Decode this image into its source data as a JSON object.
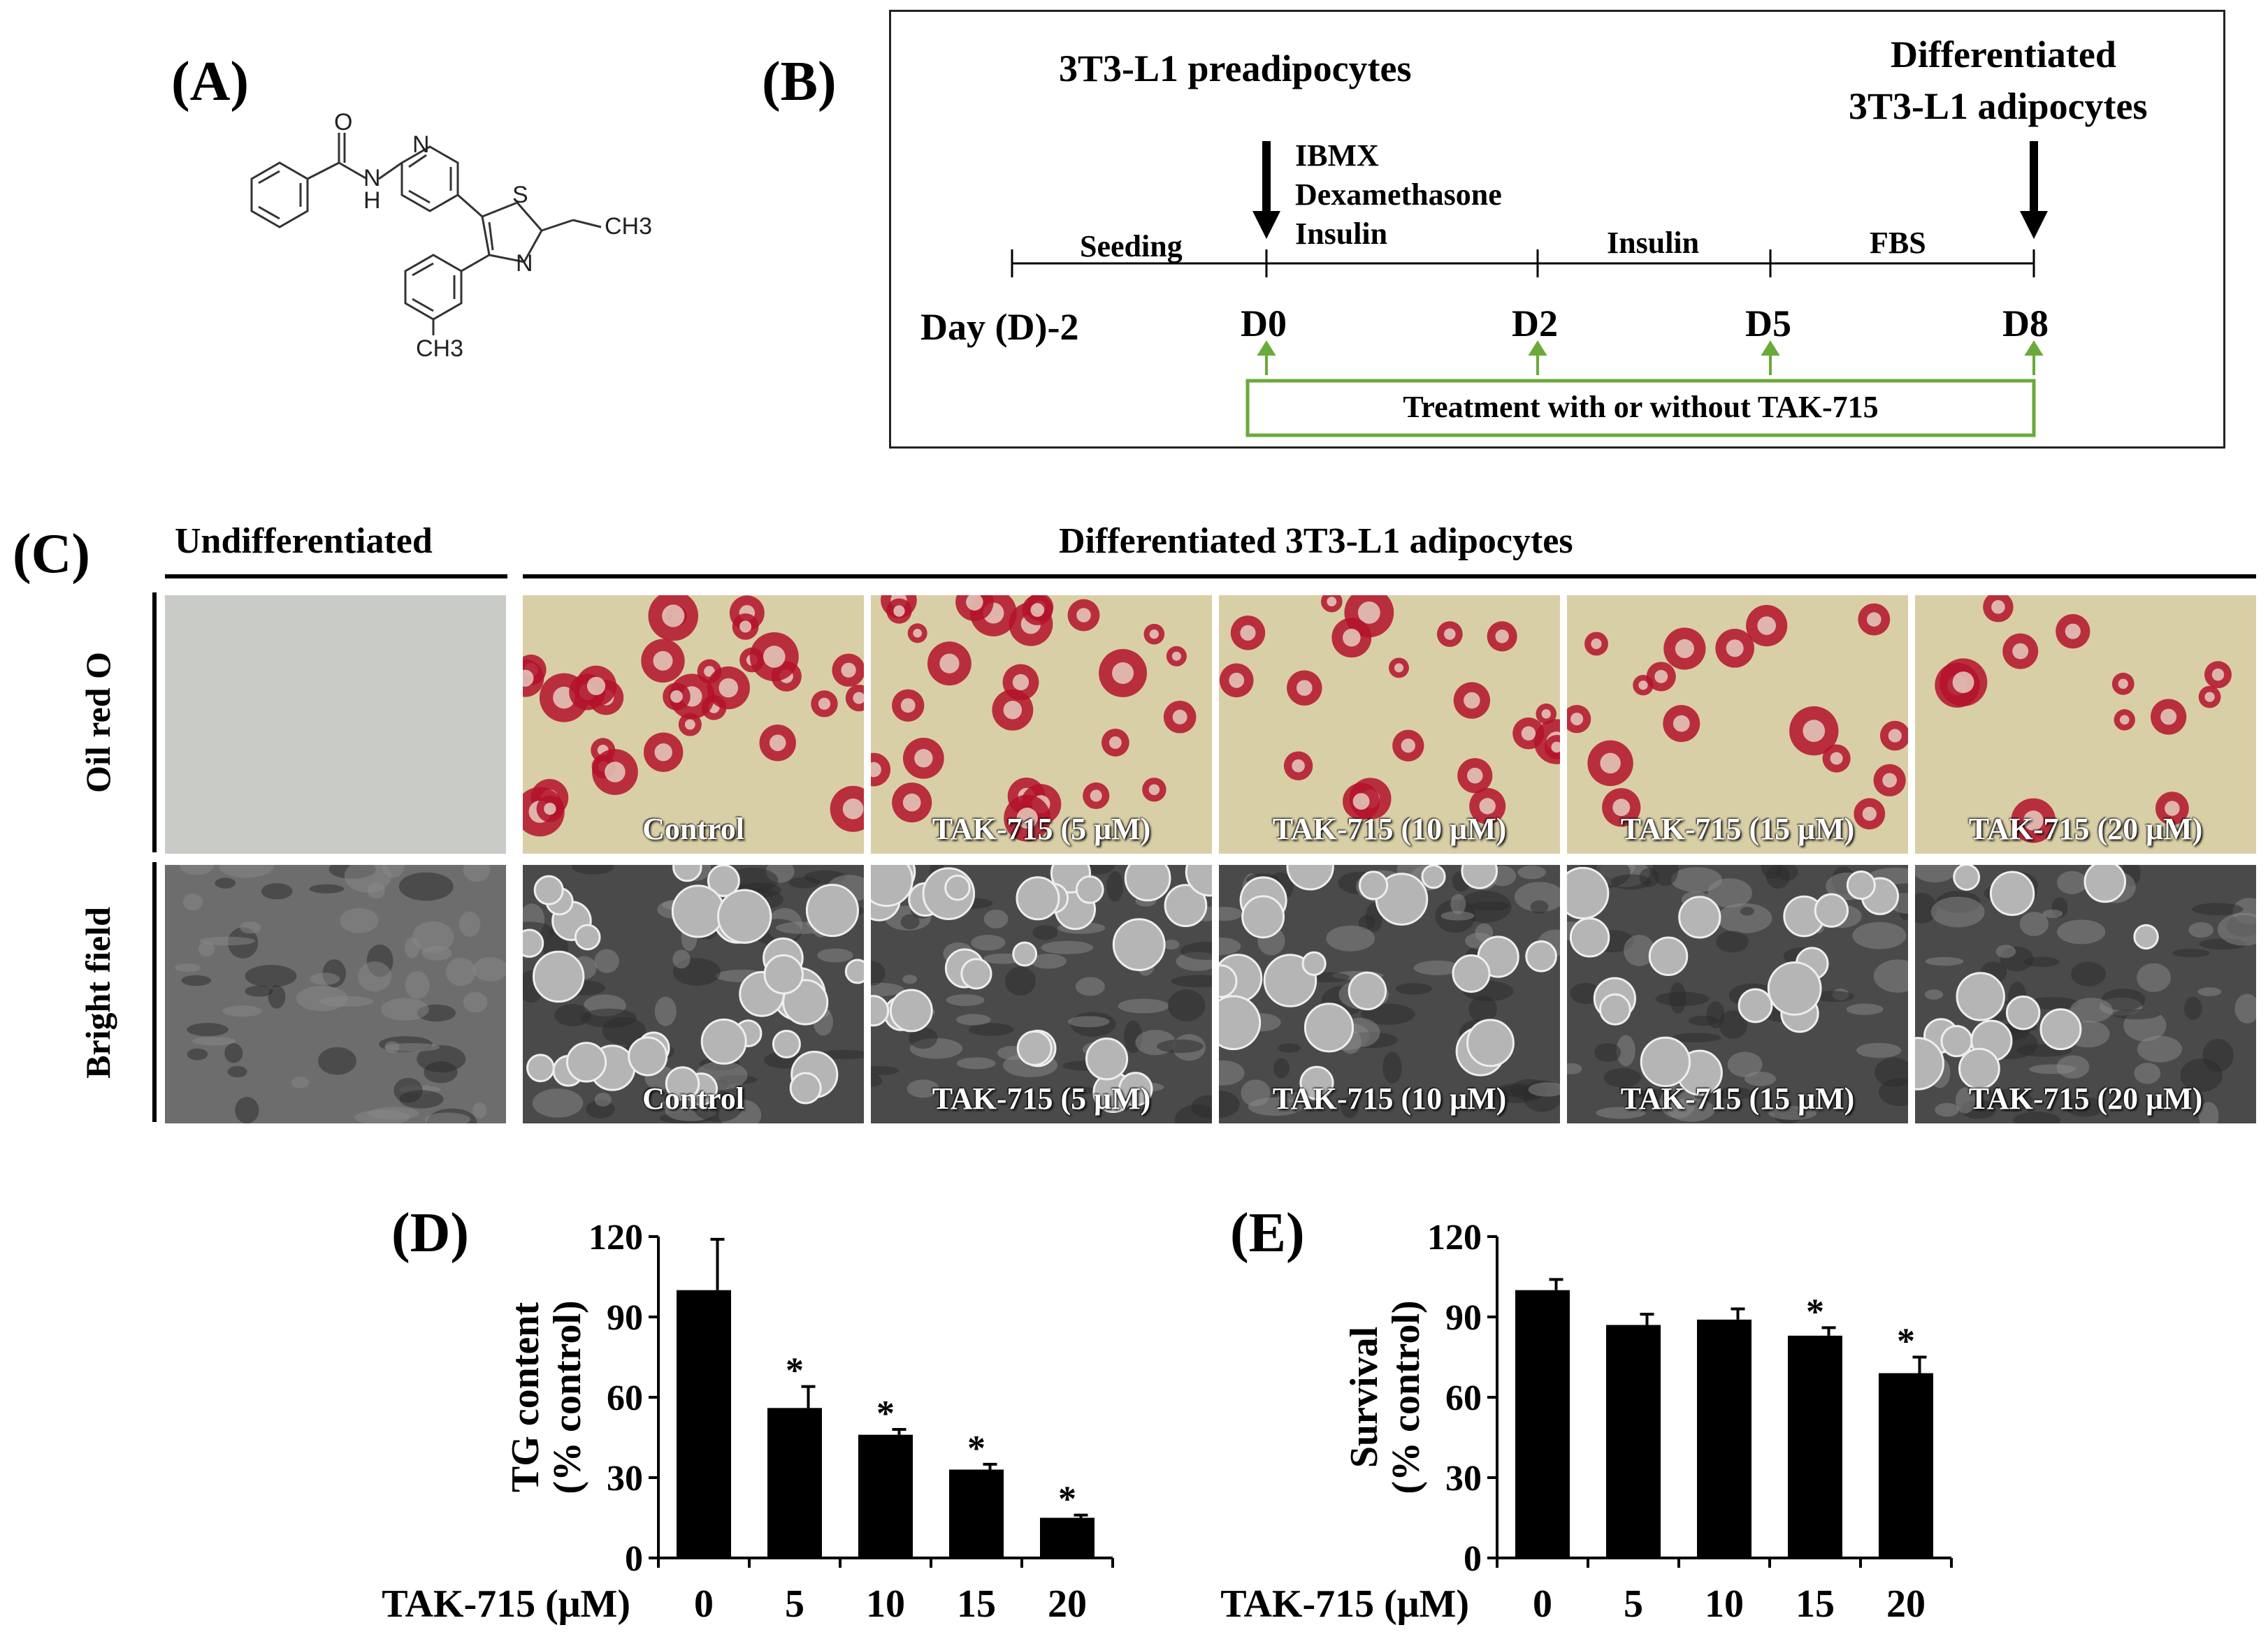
{
  "panels": {
    "a": {
      "label": "(A)",
      "atoms": {
        "o": "O",
        "n_ring": "N",
        "n_amide": "N",
        "h_amide": "H",
        "s_ring": "S",
        "n_thiazole": "N",
        "ch3_ethyl": "CH3",
        "ch3_tolyl": "CH3"
      }
    },
    "b": {
      "label": "(B)",
      "start_title": "3T3-L1 preadipocytes",
      "end_title_line1": "Differentiated",
      "end_title_line2": "3T3-L1 adipocytes",
      "d0_agents": [
        "IBMX",
        "Dexamethasone",
        "Insulin"
      ],
      "segments": [
        "Seeding",
        "Insulin",
        "FBS"
      ],
      "days": [
        "Day (D)-2",
        "D0",
        "D2",
        "D5",
        "D8"
      ],
      "treatment": "Treatment  with  or without  TAK-715"
    },
    "c": {
      "label": "(C)",
      "header_undiff": "Undifferentiated",
      "header_diff": "Differentiated 3T3-L1 adipocytes",
      "row_labels": [
        "Oil red O",
        "Bright field"
      ],
      "captions": [
        "Control",
        "TAK-715 (5 μM)",
        "TAK-715 (10 μM)",
        "TAK-715 (15 μM)",
        "TAK-715 (20 μM)"
      ]
    },
    "d": {
      "label": "(D)"
    },
    "e": {
      "label": "(E)"
    }
  },
  "colors": {
    "bar": "#000000",
    "treatment_box": "#6aaa3a",
    "arrow_green": "#6aaa3a",
    "oil_red": "#b3122a",
    "oil_bg": "#d9cfa6"
  },
  "chart_data": [
    {
      "type": "bar",
      "panel": "(D)",
      "categories": [
        "0",
        "5",
        "10",
        "15",
        "20"
      ],
      "values": [
        100,
        56,
        46,
        33,
        15
      ],
      "errors": [
        19,
        8,
        2,
        2,
        1
      ],
      "significant": [
        false,
        true,
        true,
        true,
        true
      ],
      "sig_marker": "*",
      "ylabel_line1": "TG content",
      "ylabel_line2": "(% control)",
      "xlabel": "TAK-715 (μM)",
      "yticks": [
        0,
        30,
        60,
        90,
        120
      ],
      "ylim": [
        0,
        120
      ]
    },
    {
      "type": "bar",
      "panel": "(E)",
      "categories": [
        "0",
        "5",
        "10",
        "15",
        "20"
      ],
      "values": [
        100,
        87,
        89,
        83,
        69
      ],
      "errors": [
        4,
        4,
        4,
        3,
        6
      ],
      "significant": [
        false,
        false,
        false,
        true,
        true
      ],
      "sig_marker": "*",
      "ylabel_line1": "Survival",
      "ylabel_line2": "(% control)",
      "xlabel": "TAK-715 (μM)",
      "yticks": [
        0,
        30,
        60,
        90,
        120
      ],
      "ylim": [
        0,
        120
      ]
    }
  ]
}
